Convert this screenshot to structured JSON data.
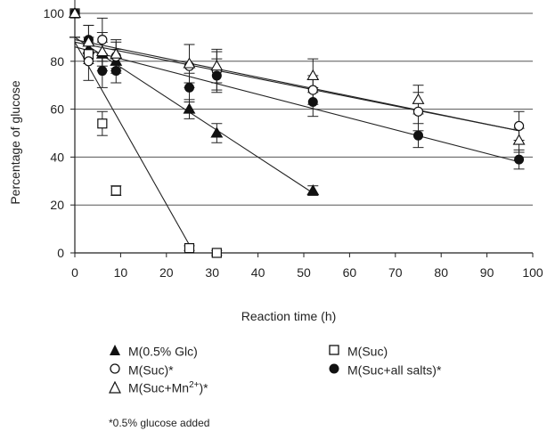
{
  "chart_data": {
    "type": "scatter",
    "xlabel": "Reaction time (h)",
    "ylabel": "Percentage of glucose",
    "xlim": [
      0,
      100
    ],
    "ylim": [
      0,
      100
    ],
    "xticks": [
      "0",
      "10",
      "20",
      "30",
      "40",
      "50",
      "60",
      "70",
      "80",
      "90",
      "100"
    ],
    "yticks": [
      "0",
      "20",
      "40",
      "60",
      "80",
      "100"
    ],
    "grid": "horizontal",
    "series": [
      {
        "name": "M(0.5% Glc)",
        "marker": "triangle-filled",
        "x": [
          0,
          3,
          6,
          9,
          25,
          31,
          52
        ],
        "y": [
          100,
          85,
          83,
          80,
          60,
          50,
          26
        ],
        "err": [
          10,
          5,
          5,
          5,
          4,
          4,
          2
        ],
        "fit": [
          [
            0,
            90
          ],
          [
            52,
            25
          ]
        ]
      },
      {
        "name": "M(Suc)",
        "marker": "square-open",
        "x": [
          0,
          3,
          6,
          9,
          25,
          31
        ],
        "y": [
          100,
          83,
          54,
          26,
          2,
          0
        ],
        "err": [
          10,
          4,
          5,
          2,
          1,
          1
        ],
        "fit": [
          [
            0,
            88
          ],
          [
            26,
            0
          ]
        ]
      },
      {
        "name": "M(Suc)*",
        "marker": "circle-open",
        "x": [
          0,
          3,
          6,
          9,
          25,
          31,
          52,
          75,
          97
        ],
        "y": [
          100,
          80,
          89,
          82,
          78,
          76,
          68,
          59,
          53
        ],
        "err": [
          10,
          8,
          9,
          6,
          9,
          8,
          6,
          8,
          6
        ],
        "fit": [
          [
            0,
            88
          ],
          [
            97,
            51
          ]
        ]
      },
      {
        "name": "M(Suc+all salts)*",
        "marker": "circle-filled",
        "x": [
          0,
          3,
          6,
          9,
          25,
          31,
          52,
          75,
          97
        ],
        "y": [
          100,
          89,
          76,
          76,
          69,
          74,
          63,
          49,
          39
        ],
        "err": [
          10,
          6,
          7,
          5,
          6,
          7,
          6,
          5,
          4
        ],
        "fit": [
          [
            0,
            86
          ],
          [
            97,
            38
          ]
        ]
      },
      {
        "name": "M(Suc+Mn2+)*",
        "marker": "triangle-open",
        "x": [
          0,
          3,
          6,
          9,
          25,
          31,
          52,
          75,
          97
        ],
        "y": [
          100,
          88,
          84,
          83,
          79,
          78,
          74,
          64,
          47
        ],
        "err": [
          10,
          7,
          8,
          6,
          8,
          7,
          7,
          6,
          5
        ],
        "fit": [
          [
            0,
            89
          ],
          [
            97,
            51
          ]
        ]
      }
    ],
    "legend": {
      "placement": "bottom",
      "items": [
        {
          "prefix": "M(0.5% Glc)",
          "sup": "",
          "suffix": ""
        },
        {
          "prefix": "M(Suc)",
          "sup": "",
          "suffix": ""
        },
        {
          "prefix": "M(Suc)*",
          "sup": "",
          "suffix": ""
        },
        {
          "prefix": "M(Suc+all salts)*",
          "sup": "",
          "suffix": ""
        },
        {
          "prefix": "M(Suc+Mn",
          "sup": "2+",
          "suffix": ")*"
        }
      ]
    },
    "footnote": "*0.5% glucose added"
  }
}
